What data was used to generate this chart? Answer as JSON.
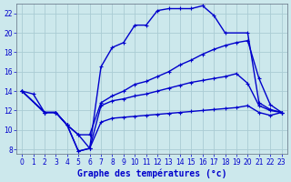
{
  "title": "Graphe des températures (°c)",
  "bg_color": "#cce8ec",
  "grid_color": "#aaccd4",
  "line_color": "#0000cc",
  "xlim": [
    -0.5,
    23.5
  ],
  "ylim": [
    7.5,
    23.0
  ],
  "xticks": [
    0,
    1,
    2,
    3,
    4,
    5,
    6,
    7,
    8,
    9,
    10,
    11,
    12,
    13,
    14,
    15,
    16,
    17,
    18,
    19,
    20,
    21,
    22,
    23
  ],
  "yticks": [
    8,
    10,
    12,
    14,
    16,
    18,
    20,
    22
  ],
  "curve1_x": [
    0,
    1,
    2,
    3,
    4,
    5,
    6,
    7,
    8,
    9,
    10,
    11,
    12,
    13,
    14,
    15,
    16,
    17,
    18,
    19,
    20,
    21,
    22,
    23
  ],
  "curve1_y": [
    14.0,
    13.7,
    11.8,
    11.8,
    10.5,
    7.8,
    8.1,
    12.5,
    13.0,
    13.2,
    13.5,
    13.7,
    14.0,
    14.3,
    14.6,
    14.9,
    15.1,
    15.3,
    15.5,
    15.8,
    14.8,
    12.5,
    12.0,
    11.8
  ],
  "curve2_x": [
    0,
    2,
    3,
    4,
    5,
    6,
    7,
    8,
    9,
    10,
    11,
    12,
    13,
    14,
    15,
    16,
    17,
    18,
    20,
    21,
    22,
    23
  ],
  "curve2_y": [
    14.0,
    11.8,
    11.8,
    10.5,
    7.8,
    8.1,
    16.5,
    18.5,
    19.0,
    20.8,
    20.8,
    22.3,
    22.5,
    22.5,
    22.5,
    22.8,
    21.8,
    20.0,
    20.0,
    12.8,
    12.1,
    11.8
  ],
  "curve3_x": [
    0,
    2,
    3,
    4,
    5,
    6,
    7,
    8,
    9,
    10,
    11,
    12,
    13,
    14,
    15,
    16,
    17,
    18,
    19,
    20,
    21,
    22,
    23
  ],
  "curve3_y": [
    14.0,
    11.8,
    11.8,
    10.5,
    9.5,
    9.5,
    12.8,
    13.5,
    14.0,
    14.7,
    15.0,
    15.5,
    16.0,
    16.7,
    17.2,
    17.8,
    18.3,
    18.7,
    19.0,
    19.2,
    15.3,
    12.6,
    11.8
  ],
  "curve4_x": [
    0,
    2,
    3,
    4,
    5,
    6,
    7,
    8,
    9,
    10,
    11,
    12,
    13,
    14,
    15,
    16,
    17,
    18,
    19,
    20,
    21,
    22,
    23
  ],
  "curve4_y": [
    14.0,
    11.8,
    11.8,
    10.5,
    9.5,
    8.1,
    10.8,
    11.2,
    11.3,
    11.4,
    11.5,
    11.6,
    11.7,
    11.8,
    11.9,
    12.0,
    12.1,
    12.2,
    12.3,
    12.5,
    11.8,
    11.5,
    11.8
  ]
}
